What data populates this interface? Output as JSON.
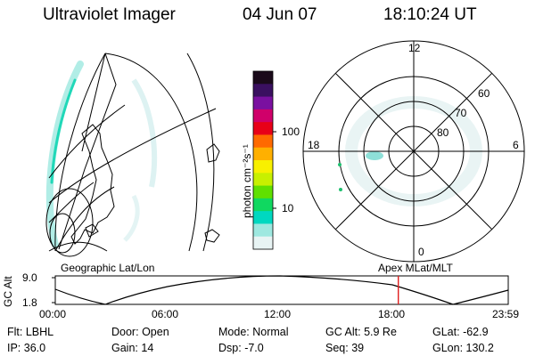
{
  "header": {
    "instrument": "Ultraviolet Imager",
    "date": "04 Jun 07",
    "time": "18:10:24 UT"
  },
  "colorbar": {
    "label": "photon cm⁻²s⁻¹",
    "ticks": [
      "100",
      "10"
    ],
    "colors": [
      "#1a0a1a",
      "#3a1060",
      "#7a10a0",
      "#d0006a",
      "#e80018",
      "#ff6a00",
      "#ffb000",
      "#f8f000",
      "#c8f000",
      "#60e000",
      "#10d860",
      "#00d8c0",
      "#9ee8e0",
      "#e8f4f4"
    ]
  },
  "map_left": {
    "label": "Geographic Lat/Lon"
  },
  "map_right": {
    "label": "Apex MLat/MLT",
    "mlt_labels": [
      "12",
      "18",
      "6",
      "0"
    ],
    "lat_labels": [
      "60",
      "70",
      "80"
    ]
  },
  "timeline": {
    "ylabel": "GC Alt",
    "yticks": [
      "9.0",
      "1.8"
    ],
    "xticks": [
      "00:00",
      "06:00",
      "12:00",
      "18:00",
      "23:59"
    ],
    "marker_fraction": 0.7573,
    "marker_color": "#e02020"
  },
  "info": {
    "filter_label": "Flt:",
    "filter_value": "LBHL",
    "ip_label": "IP:",
    "ip_value": "36.0",
    "door_label": "Door:",
    "door_value": "Open",
    "gain_label": "Gain:",
    "gain_value": "14",
    "mode_label": "Mode:",
    "mode_value": "Normal",
    "dsp_label": "Dsp:",
    "dsp_value": "-7.0",
    "gcalt_label": "GC Alt:",
    "gcalt_value": "5.9 Re",
    "seq_label": "Seq:",
    "seq_value": "39",
    "glat_label": "GLat:",
    "glat_value": "-62.9",
    "glon_label": "GLon:",
    "glon_value": "130.2"
  }
}
